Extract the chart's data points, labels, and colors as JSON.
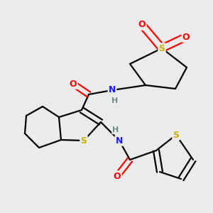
{
  "bg_color": "#ebebeb",
  "atom_colors": {
    "C": "#000000",
    "S": "#c8b400",
    "O": "#ff0000",
    "N": "#1a1aff",
    "H": "#6e8c8c"
  },
  "bond_color": "#000000",
  "bond_width": 1.6,
  "figsize": [
    3.0,
    3.0
  ],
  "dpi": 100
}
